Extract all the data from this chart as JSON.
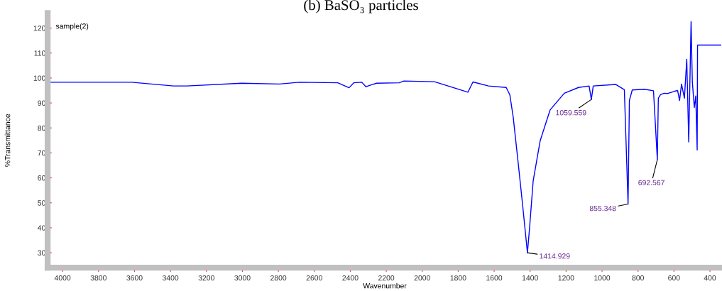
{
  "chart_data": {
    "type": "line",
    "title": "(b) BaSO₃ particles",
    "xlabel": "Wavenumber",
    "ylabel": "%Transmittance",
    "series": [
      {
        "color": "#0000ff",
        "x": [
          4080,
          3616,
          3383,
          3309,
          3005,
          2793,
          2683,
          2470,
          2407,
          2380,
          2336,
          2313,
          2281,
          2254,
          2128,
          2102,
          1932,
          1746,
          1718,
          1631,
          1533,
          1513,
          1494,
          1467,
          1442,
          1414.929,
          1403,
          1383,
          1344,
          1289,
          1210,
          1131,
          1072,
          1059.559,
          1049,
          923,
          876,
          855.348,
          848,
          832,
          765,
          714,
          692.567,
          687,
          675,
          655,
          635,
          596,
          580,
          569,
          558,
          542,
          529,
          518,
          505,
          498,
          487,
          479,
          471,
          469,
          340
        ],
        "values": [
          98.3,
          98.3,
          96.8,
          96.8,
          97.9,
          97.6,
          98.3,
          98.1,
          96.1,
          98.1,
          98.3,
          96.5,
          97.3,
          97.9,
          98.1,
          98.8,
          98.5,
          94.3,
          98.4,
          96.8,
          96.2,
          93.3,
          84.3,
          66.4,
          49.3,
          30.0,
          40,
          58.8,
          74.9,
          87.2,
          93.9,
          96.2,
          96.8,
          91.4,
          96.8,
          97.4,
          95.3,
          49.5,
          91,
          95.2,
          95.5,
          94.9,
          67.3,
          91.9,
          93.3,
          93.9,
          93.8,
          94.7,
          95.0,
          91,
          97.6,
          91.9,
          107.5,
          74.4,
          122.6,
          98.5,
          88.2,
          92.8,
          71.2,
          113.2,
          113.2
        ]
      }
    ],
    "xlim": [
      4083,
      333
    ],
    "xticks": [
      4000,
      3800,
      3600,
      3400,
      3200,
      3000,
      2800,
      2600,
      2400,
      2200,
      2000,
      1800,
      1600,
      1400,
      1200,
      1000,
      800,
      600,
      400
    ],
    "ylim": [
      24,
      126
    ],
    "yticks": [
      30,
      40,
      50,
      60,
      70,
      80,
      90,
      100,
      110,
      120
    ],
    "grid": false,
    "marker": "none",
    "line_style": "solid",
    "annotations": [
      "sample(2)",
      {
        "text": "1414.929",
        "x": 1414.929,
        "y": 30.0
      },
      {
        "text": "1059.559",
        "x": 1059.559,
        "y": 91.4
      },
      {
        "text": "855.348",
        "x": 855.348,
        "y": 49.5
      },
      {
        "text": "692.567",
        "x": 692.567,
        "y": 67.3
      }
    ]
  }
}
